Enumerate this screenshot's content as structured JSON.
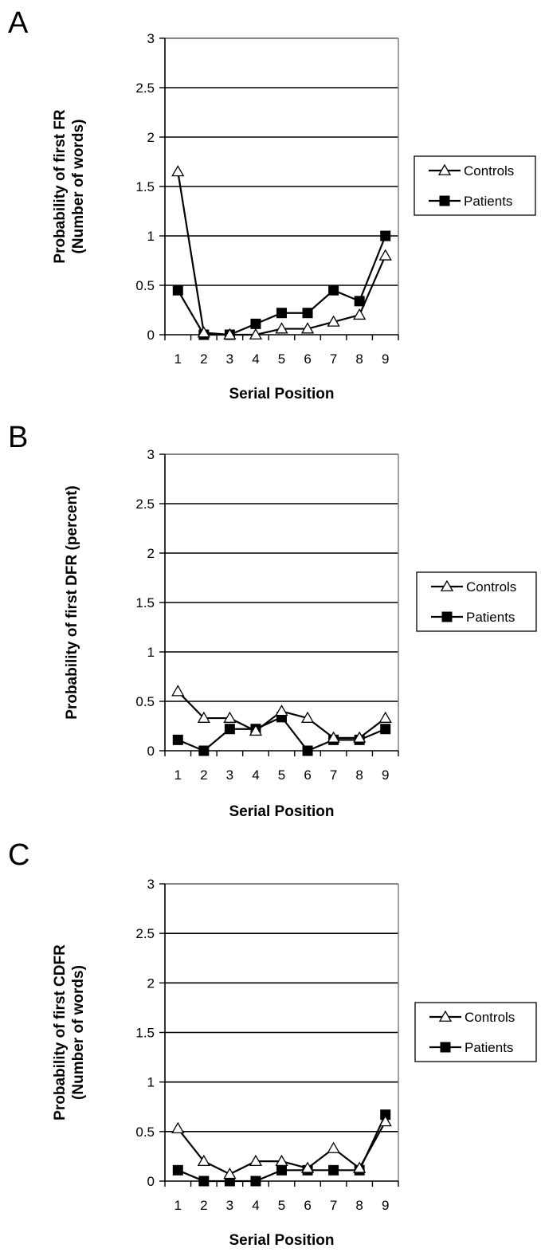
{
  "chart_data": [
    {
      "panel": "A",
      "type": "line",
      "ylabel_lines": [
        "Probability of first FR",
        "(Number of words)"
      ],
      "xlabel": "Serial Position",
      "categories": [
        "1",
        "2",
        "3",
        "4",
        "5",
        "6",
        "7",
        "8",
        "9"
      ],
      "yticks": [
        "0",
        "0.5",
        "1",
        "1.5",
        "2",
        "2.5",
        "3"
      ],
      "ylim": [
        0,
        3
      ],
      "grid": true,
      "legend_position": "right",
      "series": [
        {
          "name": "Controls",
          "marker": "open-triangle",
          "values": [
            1.65,
            0.02,
            0.0,
            0.0,
            0.06,
            0.06,
            0.13,
            0.2,
            0.8
          ]
        },
        {
          "name": "Patients",
          "marker": "filled-square",
          "values": [
            0.45,
            0.0,
            0.0,
            0.11,
            0.22,
            0.22,
            0.45,
            0.34,
            1.0
          ]
        }
      ]
    },
    {
      "panel": "B",
      "type": "line",
      "ylabel_lines": [
        "Probability of first DFR (percent)"
      ],
      "xlabel": "Serial Position",
      "categories": [
        "1",
        "2",
        "3",
        "4",
        "5",
        "6",
        "7",
        "8",
        "9"
      ],
      "yticks": [
        "0",
        "0.5",
        "1",
        "1.5",
        "2",
        "2.5",
        "3"
      ],
      "ylim": [
        0,
        3
      ],
      "grid": true,
      "legend_position": "right",
      "series": [
        {
          "name": "Controls",
          "marker": "open-triangle",
          "values": [
            0.6,
            0.33,
            0.33,
            0.2,
            0.4,
            0.33,
            0.13,
            0.13,
            0.33
          ]
        },
        {
          "name": "Patients",
          "marker": "filled-square",
          "values": [
            0.11,
            0.0,
            0.22,
            0.22,
            0.34,
            0.0,
            0.11,
            0.11,
            0.22
          ]
        }
      ]
    },
    {
      "panel": "C",
      "type": "line",
      "ylabel_lines": [
        "Probability of first CDFR",
        "(Number of words)"
      ],
      "xlabel": "Serial Position",
      "categories": [
        "1",
        "2",
        "3",
        "4",
        "5",
        "6",
        "7",
        "8",
        "9"
      ],
      "yticks": [
        "0",
        "0.5",
        "1",
        "1.5",
        "2",
        "2.5",
        "3"
      ],
      "ylim": [
        0,
        3
      ],
      "grid": true,
      "legend_position": "right",
      "series": [
        {
          "name": "Controls",
          "marker": "open-triangle",
          "values": [
            0.53,
            0.2,
            0.07,
            0.2,
            0.2,
            0.13,
            0.33,
            0.13,
            0.6
          ]
        },
        {
          "name": "Patients",
          "marker": "filled-square",
          "values": [
            0.11,
            0.0,
            0.0,
            0.0,
            0.11,
            0.11,
            0.11,
            0.11,
            0.67
          ]
        }
      ]
    }
  ]
}
